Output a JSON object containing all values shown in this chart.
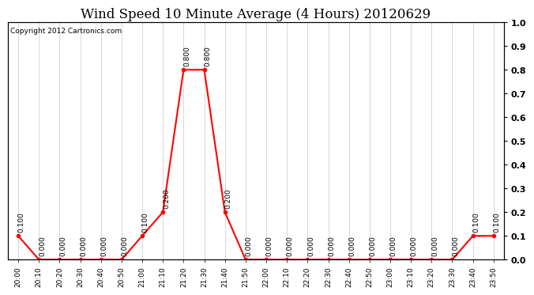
{
  "title": "Wind Speed 10 Minute Average (4 Hours) 20120629",
  "copyright": "Copyright 2012 Cartronics.com",
  "x_labels": [
    "20:00",
    "20:10",
    "20:20",
    "20:30",
    "20:40",
    "20:50",
    "21:00",
    "21:10",
    "21:20",
    "21:30",
    "21:40",
    "21:50",
    "22:00",
    "22:10",
    "22:20",
    "22:30",
    "22:40",
    "22:50",
    "23:00",
    "23:10",
    "23:20",
    "23:30",
    "23:40",
    "23:50"
  ],
  "y_values": [
    0.1,
    0.0,
    0.0,
    0.0,
    0.0,
    0.0,
    0.1,
    0.2,
    0.8,
    0.8,
    0.2,
    0.0,
    0.0,
    0.0,
    0.0,
    0.0,
    0.0,
    0.0,
    0.0,
    0.0,
    0.0,
    0.0,
    0.1,
    0.1
  ],
  "line_color": "#ff0000",
  "marker_color": "#ff0000",
  "background_color": "#ffffff",
  "grid_color": "#c8c8c8",
  "ylim": [
    0.0,
    1.0
  ],
  "y_ticks_right": [
    0.0,
    0.1,
    0.2,
    0.3,
    0.4,
    0.5,
    0.6,
    0.7,
    0.8,
    0.9,
    1.0
  ],
  "title_fontsize": 12,
  "copyright_fontsize": 6.5,
  "label_fontsize": 6.5,
  "annotation_fontsize": 6.5,
  "tick_label_fontsize": 8
}
